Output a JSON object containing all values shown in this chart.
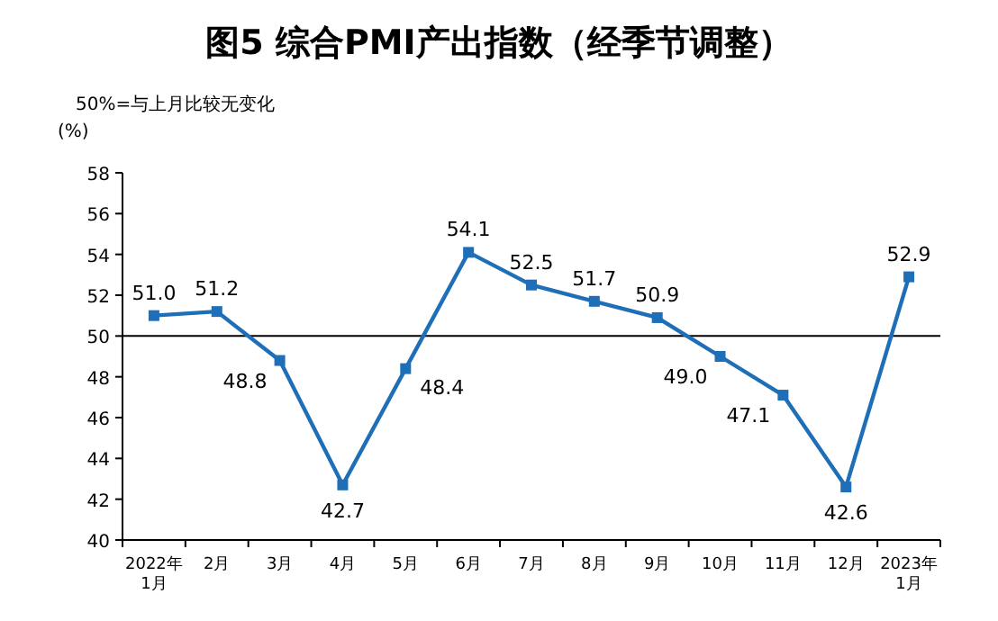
{
  "chart_data": {
    "type": "line",
    "title": "图5 综合PMI产出指数（经季节调整）",
    "ylabel": "(%)",
    "annotations": [
      "50%=与上月比较无变化"
    ],
    "categories": [
      "2022年\n1月",
      "2月",
      "3月",
      "4月",
      "5月",
      "6月",
      "7月",
      "8月",
      "9月",
      "10月",
      "11月",
      "12月",
      "2023年\n1月"
    ],
    "series": [
      {
        "color": "#1f6fb8",
        "values": [
          51.0,
          51.2,
          48.8,
          42.7,
          48.4,
          54.1,
          52.5,
          51.7,
          50.9,
          49.0,
          47.1,
          42.6,
          52.9
        ],
        "value_labels": [
          "51.0",
          "51.2",
          "48.8",
          "42.7",
          "48.4",
          "54.1",
          "52.5",
          "51.7",
          "50.9",
          "49.0",
          "47.1",
          "42.6",
          "52.9"
        ]
      }
    ],
    "ylim": [
      40,
      58
    ],
    "yticks": [
      40,
      42,
      44,
      46,
      48,
      50,
      52,
      54,
      56,
      58
    ],
    "ref_lines": [
      {
        "axis": "y",
        "value": 50,
        "color": "#000000"
      }
    ],
    "marker": "square",
    "line_style": "solid",
    "grid": false
  }
}
